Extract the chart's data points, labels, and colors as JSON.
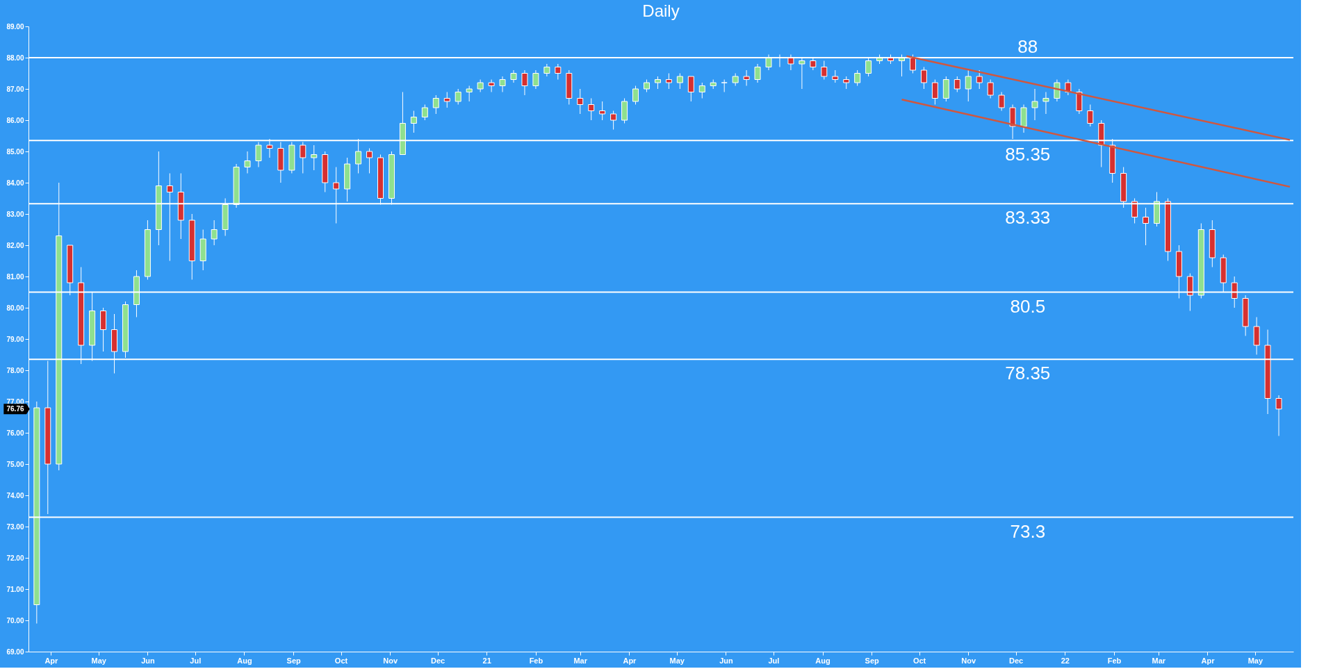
{
  "chart_data": {
    "type": "candlestick",
    "title": "Daily",
    "x": [
      "2020-03-23",
      "2020-03-30",
      "2020-04-06",
      "2020-04-13",
      "2020-04-20",
      "2020-04-27",
      "2020-05-04",
      "2020-05-11",
      "2020-05-18",
      "2020-05-25",
      "2020-06-01",
      "2020-06-08",
      "2020-06-15",
      "2020-06-22",
      "2020-06-29",
      "2020-07-06",
      "2020-07-13",
      "2020-07-20",
      "2020-07-27",
      "2020-08-03",
      "2020-08-10",
      "2020-08-17",
      "2020-08-24",
      "2020-08-31",
      "2020-09-07",
      "2020-09-14",
      "2020-09-21",
      "2020-09-28",
      "2020-10-05",
      "2020-10-12",
      "2020-10-19",
      "2020-10-26",
      "2020-11-02",
      "2020-11-09",
      "2020-11-16",
      "2020-11-23",
      "2020-11-30",
      "2020-12-07",
      "2020-12-14",
      "2020-12-21",
      "2020-12-28",
      "2021-01-04",
      "2021-01-11",
      "2021-01-18",
      "2021-01-25",
      "2021-02-01",
      "2021-02-08",
      "2021-02-15",
      "2021-02-22",
      "2021-03-01",
      "2021-03-08",
      "2021-03-15",
      "2021-03-22",
      "2021-03-29",
      "2021-04-05",
      "2021-04-12",
      "2021-04-19",
      "2021-04-26",
      "2021-05-03",
      "2021-05-10",
      "2021-05-17",
      "2021-05-24",
      "2021-05-31",
      "2021-06-07",
      "2021-06-14",
      "2021-06-21",
      "2021-06-28",
      "2021-07-05",
      "2021-07-12",
      "2021-07-19",
      "2021-07-26",
      "2021-08-02",
      "2021-08-09",
      "2021-08-16",
      "2021-08-23",
      "2021-08-30",
      "2021-09-06",
      "2021-09-13",
      "2021-09-20",
      "2021-09-27",
      "2021-10-04",
      "2021-10-11",
      "2021-10-18",
      "2021-10-25",
      "2021-11-01",
      "2021-11-08",
      "2021-11-15",
      "2021-11-22",
      "2021-11-29",
      "2021-12-06",
      "2021-12-13",
      "2021-12-20",
      "2021-12-27",
      "2022-01-03",
      "2022-01-10",
      "2022-01-17",
      "2022-01-24",
      "2022-01-31",
      "2022-02-07",
      "2022-02-14",
      "2022-02-21",
      "2022-02-28",
      "2022-03-07",
      "2022-03-14",
      "2022-03-21",
      "2022-03-28",
      "2022-04-04",
      "2022-04-11",
      "2022-04-18",
      "2022-04-25",
      "2022-05-02",
      "2022-05-09",
      "2022-05-16"
    ],
    "ohlc": [
      [
        70.5,
        77.0,
        69.9,
        76.8
      ],
      [
        76.8,
        78.3,
        73.4,
        75.0
      ],
      [
        75.0,
        84.0,
        74.8,
        82.3
      ],
      [
        82.0,
        82.0,
        80.4,
        80.8
      ],
      [
        80.8,
        81.3,
        78.2,
        78.8
      ],
      [
        78.8,
        80.5,
        78.3,
        79.9
      ],
      [
        79.9,
        80.0,
        78.6,
        79.3
      ],
      [
        79.3,
        79.8,
        77.9,
        78.6
      ],
      [
        78.6,
        80.2,
        78.4,
        80.1
      ],
      [
        80.1,
        81.2,
        79.7,
        81.0
      ],
      [
        81.0,
        82.8,
        80.9,
        82.5
      ],
      [
        82.5,
        85.0,
        82.0,
        83.9
      ],
      [
        83.9,
        84.3,
        81.5,
        83.7
      ],
      [
        83.7,
        84.3,
        82.2,
        82.8
      ],
      [
        82.8,
        83.0,
        80.9,
        81.5
      ],
      [
        81.5,
        82.5,
        81.2,
        82.2
      ],
      [
        82.2,
        82.8,
        82.0,
        82.5
      ],
      [
        82.5,
        83.5,
        82.3,
        83.3
      ],
      [
        83.3,
        84.6,
        83.2,
        84.5
      ],
      [
        84.5,
        85.0,
        84.3,
        84.7
      ],
      [
        84.7,
        85.3,
        84.5,
        85.2
      ],
      [
        85.2,
        85.4,
        84.8,
        85.1
      ],
      [
        85.1,
        85.3,
        84.0,
        84.4
      ],
      [
        84.4,
        85.3,
        84.3,
        85.2
      ],
      [
        85.2,
        85.3,
        84.3,
        84.8
      ],
      [
        84.8,
        85.2,
        84.4,
        84.9
      ],
      [
        84.9,
        85.0,
        83.7,
        84.0
      ],
      [
        84.0,
        84.5,
        82.7,
        83.8
      ],
      [
        83.8,
        84.8,
        83.4,
        84.6
      ],
      [
        84.6,
        85.4,
        84.3,
        85.0
      ],
      [
        85.0,
        85.1,
        84.3,
        84.8
      ],
      [
        84.8,
        84.9,
        83.3,
        83.5
      ],
      [
        83.5,
        85.0,
        83.3,
        84.9
      ],
      [
        84.9,
        86.9,
        84.9,
        85.9
      ],
      [
        85.9,
        86.3,
        85.6,
        86.1
      ],
      [
        86.1,
        86.5,
        86.0,
        86.4
      ],
      [
        86.4,
        86.8,
        86.2,
        86.7
      ],
      [
        86.7,
        86.9,
        86.4,
        86.6
      ],
      [
        86.6,
        87.0,
        86.5,
        86.9
      ],
      [
        86.9,
        87.1,
        86.6,
        87.0
      ],
      [
        87.0,
        87.3,
        86.9,
        87.2
      ],
      [
        87.2,
        87.3,
        86.9,
        87.1
      ],
      [
        87.1,
        87.4,
        86.9,
        87.3
      ],
      [
        87.3,
        87.6,
        87.2,
        87.5
      ],
      [
        87.5,
        87.6,
        86.8,
        87.1
      ],
      [
        87.1,
        87.6,
        87.0,
        87.5
      ],
      [
        87.5,
        87.8,
        87.4,
        87.7
      ],
      [
        87.7,
        87.8,
        87.3,
        87.5
      ],
      [
        87.5,
        87.6,
        86.5,
        86.7
      ],
      [
        86.7,
        87.0,
        86.2,
        86.5
      ],
      [
        86.5,
        86.7,
        86.0,
        86.3
      ],
      [
        86.3,
        86.6,
        86.0,
        86.2
      ],
      [
        86.2,
        86.3,
        85.7,
        86.0
      ],
      [
        86.0,
        86.7,
        85.9,
        86.6
      ],
      [
        86.6,
        87.1,
        86.5,
        87.0
      ],
      [
        87.0,
        87.3,
        86.9,
        87.2
      ],
      [
        87.2,
        87.4,
        87.0,
        87.3
      ],
      [
        87.3,
        87.5,
        87.0,
        87.2
      ],
      [
        87.2,
        87.5,
        87.0,
        87.4
      ],
      [
        87.4,
        87.4,
        86.6,
        86.9
      ],
      [
        86.9,
        87.2,
        86.7,
        87.1
      ],
      [
        87.1,
        87.3,
        87.0,
        87.2
      ],
      [
        87.2,
        87.3,
        86.9,
        87.2
      ],
      [
        87.2,
        87.5,
        87.1,
        87.4
      ],
      [
        87.4,
        87.6,
        87.1,
        87.3
      ],
      [
        87.3,
        87.8,
        87.2,
        87.7
      ],
      [
        87.7,
        88.1,
        87.6,
        88.0
      ],
      [
        88.0,
        88.1,
        87.7,
        88.0
      ],
      [
        88.0,
        88.1,
        87.6,
        87.8
      ],
      [
        87.8,
        88.0,
        87.0,
        87.9
      ],
      [
        87.9,
        88.0,
        87.6,
        87.7
      ],
      [
        87.7,
        87.9,
        87.3,
        87.4
      ],
      [
        87.4,
        87.6,
        87.2,
        87.3
      ],
      [
        87.3,
        87.4,
        87.0,
        87.2
      ],
      [
        87.2,
        87.6,
        87.1,
        87.5
      ],
      [
        87.5,
        88.0,
        87.4,
        87.9
      ],
      [
        87.9,
        88.1,
        87.8,
        88.0
      ],
      [
        88.0,
        88.1,
        87.8,
        87.9
      ],
      [
        87.9,
        88.1,
        87.4,
        88.0
      ],
      [
        88.0,
        88.1,
        87.5,
        87.6
      ],
      [
        87.6,
        87.7,
        87.0,
        87.2
      ],
      [
        87.2,
        87.3,
        86.5,
        86.7
      ],
      [
        86.7,
        87.4,
        86.6,
        87.3
      ],
      [
        87.3,
        87.4,
        86.9,
        87.0
      ],
      [
        87.0,
        87.6,
        86.6,
        87.4
      ],
      [
        87.4,
        87.6,
        87.0,
        87.2
      ],
      [
        87.2,
        87.3,
        86.7,
        86.8
      ],
      [
        86.8,
        86.9,
        86.3,
        86.4
      ],
      [
        86.4,
        86.5,
        85.4,
        85.8
      ],
      [
        85.8,
        86.5,
        85.6,
        86.4
      ],
      [
        86.4,
        87.0,
        86.0,
        86.6
      ],
      [
        86.6,
        86.9,
        86.2,
        86.7
      ],
      [
        86.7,
        87.3,
        86.6,
        87.2
      ],
      [
        87.2,
        87.3,
        86.8,
        86.9
      ],
      [
        86.9,
        87.0,
        86.2,
        86.3
      ],
      [
        86.3,
        86.5,
        85.8,
        85.9
      ],
      [
        85.9,
        86.0,
        84.5,
        85.2
      ],
      [
        85.2,
        85.4,
        84.0,
        84.3
      ],
      [
        84.3,
        84.5,
        83.2,
        83.4
      ],
      [
        83.4,
        83.5,
        82.7,
        82.9
      ],
      [
        82.9,
        83.2,
        82.0,
        82.7
      ],
      [
        82.7,
        83.7,
        82.6,
        83.4
      ],
      [
        83.4,
        83.5,
        81.5,
        81.8
      ],
      [
        81.8,
        82.0,
        80.3,
        81.0
      ],
      [
        81.0,
        81.1,
        79.9,
        80.4
      ],
      [
        80.4,
        82.7,
        80.3,
        82.5
      ],
      [
        82.5,
        82.8,
        81.3,
        81.6
      ],
      [
        81.6,
        81.7,
        80.5,
        80.8
      ],
      [
        80.8,
        81.0,
        80.0,
        80.3
      ],
      [
        80.3,
        80.4,
        79.1,
        79.4
      ],
      [
        79.4,
        79.7,
        78.5,
        78.8
      ],
      [
        78.8,
        79.3,
        76.6,
        77.1
      ],
      [
        77.1,
        77.2,
        75.9,
        76.76
      ]
    ],
    "series": [
      {
        "type": "line",
        "color": "#d0573f",
        "x": [
          "2021-09-23",
          "2022-05-23"
        ],
        "values": [
          88.05,
          85.37
        ]
      },
      {
        "type": "line",
        "color": "#d0573f",
        "x": [
          "2021-09-20",
          "2022-05-23"
        ],
        "values": [
          86.66,
          83.87
        ]
      }
    ],
    "ref_lines": [
      {
        "axis": "y",
        "value": 88,
        "label": "88",
        "color": "#ffffff"
      },
      {
        "axis": "y",
        "value": 85.35,
        "label": "85.35",
        "color": "#ffffff"
      },
      {
        "axis": "y",
        "value": 83.33,
        "label": "83.33",
        "color": "#ffffff"
      },
      {
        "axis": "y",
        "value": 80.5,
        "label": "80.5",
        "color": "#ffffff"
      },
      {
        "axis": "y",
        "value": 78.35,
        "label": "78.35",
        "color": "#ffffff"
      },
      {
        "axis": "y",
        "value": 73.3,
        "label": "73.3",
        "color": "#ffffff"
      }
    ],
    "annotations": [
      {
        "text": "76.76",
        "x": "2020-03-20",
        "y": 76.76
      }
    ],
    "xlim": [
      "2020-03-20",
      "2022-05-23"
    ],
    "xticks": [
      {
        "value": "2020-04-01",
        "label": "Apr"
      },
      {
        "value": "2020-05-01",
        "label": "May"
      },
      {
        "value": "2020-06-01",
        "label": "Jun"
      },
      {
        "value": "2020-07-01",
        "label": "Jul"
      },
      {
        "value": "2020-08-01",
        "label": "Aug"
      },
      {
        "value": "2020-09-01",
        "label": "Sep"
      },
      {
        "value": "2020-10-01",
        "label": "Oct"
      },
      {
        "value": "2020-11-01",
        "label": "Nov"
      },
      {
        "value": "2020-12-01",
        "label": "Dec"
      },
      {
        "value": "2021-01-01",
        "label": "21"
      },
      {
        "value": "2021-02-01",
        "label": "Feb"
      },
      {
        "value": "2021-03-01",
        "label": "Mar"
      },
      {
        "value": "2021-04-01",
        "label": "Apr"
      },
      {
        "value": "2021-05-01",
        "label": "May"
      },
      {
        "value": "2021-06-01",
        "label": "Jun"
      },
      {
        "value": "2021-07-01",
        "label": "Jul"
      },
      {
        "value": "2021-08-01",
        "label": "Aug"
      },
      {
        "value": "2021-09-01",
        "label": "Sep"
      },
      {
        "value": "2021-10-01",
        "label": "Oct"
      },
      {
        "value": "2021-11-01",
        "label": "Nov"
      },
      {
        "value": "2021-12-01",
        "label": "Dec"
      },
      {
        "value": "2022-01-01",
        "label": "22"
      },
      {
        "value": "2022-02-01",
        "label": "Feb"
      },
      {
        "value": "2022-03-01",
        "label": "Mar"
      },
      {
        "value": "2022-04-01",
        "label": "Apr"
      },
      {
        "value": "2022-05-01",
        "label": "May"
      }
    ],
    "ylim": [
      69,
      89
    ],
    "yticks": [
      {
        "value": 69,
        "label": "69.00"
      },
      {
        "value": 70,
        "label": "70.00"
      },
      {
        "value": 71,
        "label": "71.00"
      },
      {
        "value": 72,
        "label": "72.00"
      },
      {
        "value": 73,
        "label": "73.00"
      },
      {
        "value": 74,
        "label": "74.00"
      },
      {
        "value": 75,
        "label": "75.00"
      },
      {
        "value": 76,
        "label": "76.00"
      },
      {
        "value": 77,
        "label": "77.00"
      },
      {
        "value": 78,
        "label": "78.00"
      },
      {
        "value": 79,
        "label": "79.00"
      },
      {
        "value": 80,
        "label": "80.00"
      },
      {
        "value": 81,
        "label": "81.00"
      },
      {
        "value": 82,
        "label": "82.00"
      },
      {
        "value": 83,
        "label": "83.00"
      },
      {
        "value": 84,
        "label": "84.00"
      },
      {
        "value": 85,
        "label": "85.00"
      },
      {
        "value": 86,
        "label": "86.00"
      },
      {
        "value": 87,
        "label": "87.00"
      },
      {
        "value": 88,
        "label": "88.00"
      },
      {
        "value": 89,
        "label": "89.00"
      }
    ]
  }
}
